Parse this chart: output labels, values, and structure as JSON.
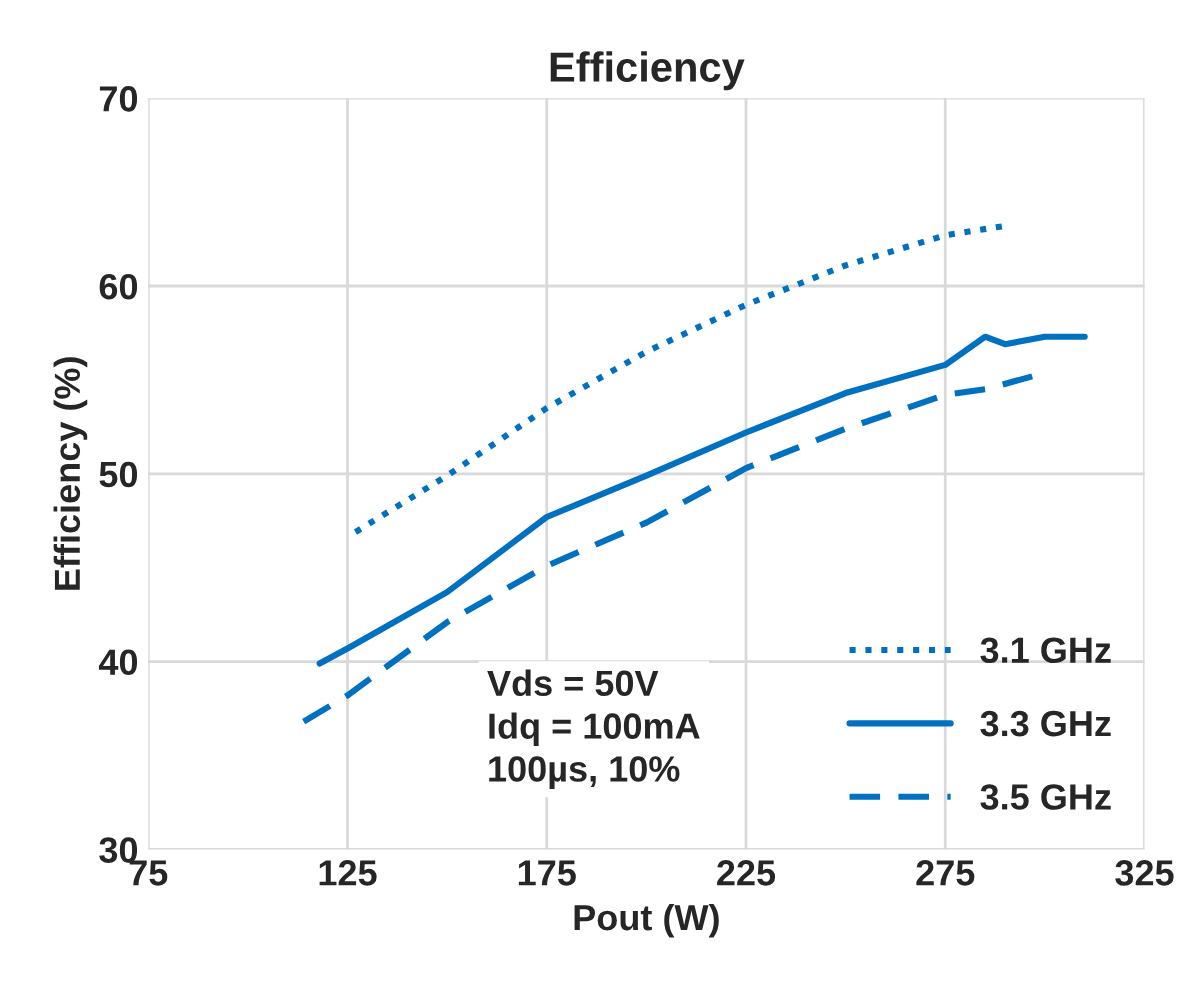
{
  "chart_data": {
    "type": "line",
    "title": "Efficiency",
    "xlabel": "Pout (W)",
    "ylabel": "Efficiency (%)",
    "xlim": [
      75,
      325
    ],
    "xticks": [
      75,
      125,
      175,
      225,
      275,
      325
    ],
    "ylim": [
      30,
      70
    ],
    "yticks": [
      30,
      40,
      50,
      60,
      70
    ],
    "grid": true,
    "legend": "bottom right",
    "series": [
      {
        "name": "3.1 GHz",
        "color": "#0070c0",
        "line_style": "dotted",
        "x": [
          127,
          150,
          175,
          200,
          225,
          250,
          275,
          290
        ],
        "values": [
          46.9,
          49.9,
          53.5,
          56.5,
          59.0,
          61.1,
          62.7,
          63.2
        ]
      },
      {
        "name": "3.3 GHz",
        "color": "#0070c0",
        "line_style": "solid",
        "x": [
          118,
          125,
          150,
          175,
          200,
          225,
          250,
          275,
          285,
          290,
          300,
          310
        ],
        "values": [
          39.9,
          40.7,
          43.7,
          47.7,
          49.9,
          52.2,
          54.3,
          55.8,
          57.3,
          56.9,
          57.3,
          57.3
        ]
      },
      {
        "name": "3.5 GHz",
        "color": "#0070c0",
        "line_style": "dashed",
        "x": [
          114,
          125,
          150,
          175,
          200,
          225,
          250,
          275,
          285,
          297
        ],
        "values": [
          36.8,
          38.2,
          42.1,
          45.1,
          47.4,
          50.3,
          52.4,
          54.2,
          54.5,
          55.2
        ]
      }
    ],
    "annotations": [
      "Vds = 50V\nIdq = 100mA\n100µs, 10%"
    ]
  }
}
